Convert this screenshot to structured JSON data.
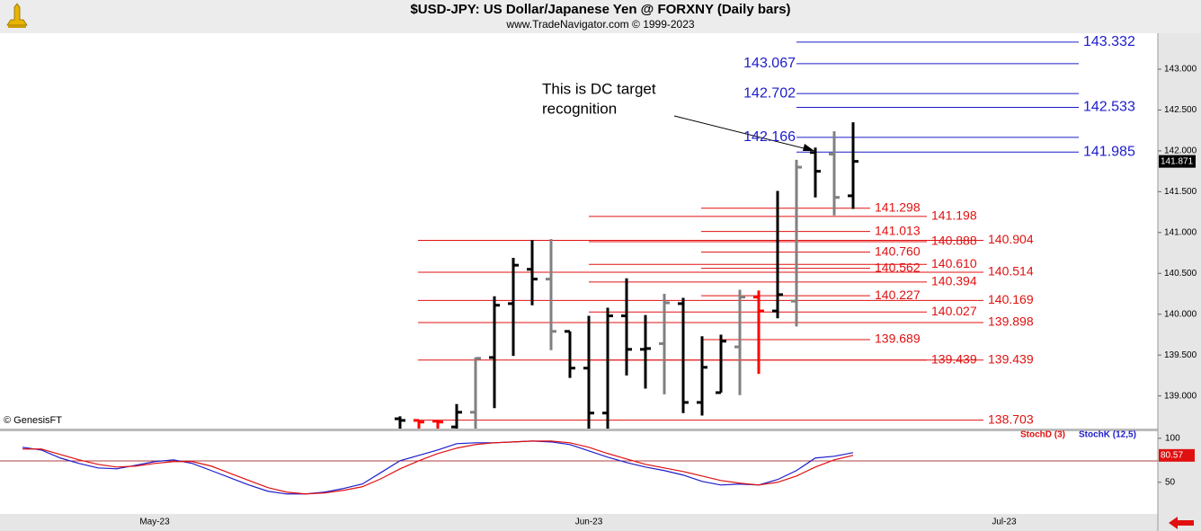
{
  "title": "$USD-JPY:  US Dollar/Japanese Yen @ FORXNY  (Daily bars)",
  "subtitle": "www.TradeNavigator.com © 1999-2023",
  "annotation": [
    "This is DC target",
    "recognition"
  ],
  "credit": "© GenesisFT",
  "chart_data": [
    {
      "type": "ohlc",
      "categories": [
        null,
        null,
        null,
        null,
        null,
        null,
        null,
        "May-23",
        null,
        null,
        null,
        null,
        null,
        null,
        null,
        null,
        null,
        null,
        null,
        null,
        null,
        null,
        null,
        null,
        null,
        null,
        null,
        null,
        null,
        null,
        "Jun-23",
        null,
        null,
        null,
        null,
        null,
        null,
        null,
        null,
        null,
        null,
        null,
        null,
        null,
        null,
        null,
        null,
        null,
        null,
        null,
        null,
        null,
        "Jul-23",
        null,
        null,
        null,
        null,
        null,
        null,
        null
      ],
      "open": [
        null,
        null,
        null,
        null,
        null,
        null,
        null,
        null,
        null,
        null,
        null,
        null,
        null,
        null,
        null,
        null,
        null,
        null,
        null,
        null,
        138.72,
        138.7,
        138.69,
        138.62,
        138.8,
        139.47,
        140.13,
        140.55,
        140.43,
        139.79,
        139.34,
        138.79,
        139.98,
        139.57,
        139.64,
        140.13,
        138.92,
        139.04,
        139.6,
        140.21,
        140.04,
        140.16,
        141.98,
        141.96,
        141.45,
        null,
        null,
        null,
        null,
        null,
        null,
        null,
        null,
        null,
        null,
        null,
        null,
        null,
        null,
        null
      ],
      "high": [
        null,
        null,
        null,
        null,
        null,
        null,
        null,
        null,
        null,
        null,
        null,
        null,
        null,
        null,
        null,
        null,
        null,
        null,
        null,
        null,
        138.75,
        138.7,
        138.7,
        138.9,
        139.47,
        140.22,
        140.69,
        140.91,
        140.92,
        139.79,
        139.98,
        140.08,
        140.44,
        139.99,
        140.25,
        140.2,
        139.73,
        139.75,
        140.3,
        140.29,
        141.51,
        141.89,
        142.04,
        142.24,
        142.35,
        null,
        null,
        null,
        null,
        null,
        null,
        null,
        null,
        null,
        null,
        null,
        null,
        null,
        null,
        null
      ],
      "low": [
        null,
        null,
        null,
        null,
        null,
        null,
        null,
        null,
        null,
        null,
        null,
        null,
        null,
        null,
        null,
        null,
        null,
        null,
        null,
        null,
        138.6,
        138.6,
        138.6,
        138.6,
        138.6,
        138.85,
        139.49,
        140.11,
        139.56,
        139.22,
        138.6,
        138.6,
        139.25,
        139.09,
        139.02,
        138.79,
        138.76,
        139.04,
        139.01,
        139.27,
        139.95,
        139.85,
        141.43,
        141.21,
        141.29,
        null,
        null,
        null,
        null,
        null,
        null,
        null,
        null,
        null,
        null,
        null,
        null,
        null,
        null,
        null
      ],
      "close": [
        null,
        null,
        null,
        null,
        null,
        null,
        null,
        null,
        null,
        null,
        null,
        null,
        null,
        null,
        null,
        null,
        null,
        null,
        null,
        null,
        138.7,
        138.68,
        138.68,
        138.8,
        139.46,
        140.11,
        140.6,
        140.43,
        139.79,
        139.34,
        138.79,
        139.98,
        139.57,
        139.58,
        140.14,
        138.92,
        139.35,
        139.67,
        140.21,
        140.04,
        140.24,
        141.8,
        141.75,
        141.43,
        141.871,
        null,
        null,
        null,
        null,
        null,
        null,
        null,
        null,
        null,
        null,
        null,
        null,
        null,
        null,
        null
      ],
      "bar_colors": [
        null,
        null,
        null,
        null,
        null,
        null,
        null,
        null,
        null,
        null,
        null,
        null,
        null,
        null,
        null,
        null,
        null,
        null,
        null,
        null,
        "#000000",
        "#ff0000",
        "#ff0000",
        "#000000",
        "#808080",
        "#000000",
        "#000000",
        "#000000",
        "#808080",
        "#000000",
        "#000000",
        "#000000",
        "#000000",
        "#000000",
        "#808080",
        "#000000",
        "#000000",
        "#000000",
        "#808080",
        "#ff0000",
        "#000000",
        "#808080",
        "#000000",
        "#808080",
        "#000000",
        null,
        null,
        null,
        null,
        null,
        null,
        null,
        null,
        null,
        null,
        null,
        null,
        null,
        null,
        null
      ],
      "ylim": [
        138.6,
        143.44
      ],
      "yticks": [
        {
          "value": 139,
          "label": "139.000"
        },
        {
          "value": 139.5,
          "label": "139.500"
        },
        {
          "value": 140,
          "label": "140.000"
        },
        {
          "value": 140.5,
          "label": "140.500"
        },
        {
          "value": 141,
          "label": "141.000"
        },
        {
          "value": 141.5,
          "label": "141.500"
        },
        {
          "value": 142,
          "label": "142.000"
        },
        {
          "value": 142.5,
          "label": "142.500"
        },
        {
          "value": 143,
          "label": "143.000"
        }
      ],
      "level_sets": [
        {
          "color": "#1c1ccc",
          "values": [
            143.332,
            142.533,
            141.985
          ],
          "value_labels": [
            "143.332",
            "142.533",
            "141.985"
          ]
        },
        {
          "color": "#1c1ccc",
          "values": [
            143.067,
            142.702,
            142.166
          ],
          "value_labels": [
            "143.067",
            "142.702",
            "142.166"
          ]
        },
        {
          "color": "#e01010",
          "values": [
            141.298,
            141.013,
            140.76,
            140.562,
            140.227,
            139.689
          ],
          "value_labels": [
            "141.298",
            "141.013",
            "140.760",
            "140.562",
            "140.227",
            "139.689"
          ]
        },
        {
          "color": "#e01010",
          "values": [
            141.198,
            140.888,
            140.61,
            140.394,
            140.027,
            139.439
          ],
          "value_labels": [
            "141.198",
            "140.888",
            "140.610",
            "140.394",
            "140.027",
            "139.439"
          ]
        },
        {
          "color": "#e01010",
          "values": [
            140.904,
            140.514,
            140.169,
            139.898,
            139.439,
            138.703
          ],
          "value_labels": [
            "140.904",
            "140.514",
            "140.169",
            "139.898",
            "139.439",
            "138.703"
          ]
        }
      ]
    },
    {
      "type": "line",
      "ylim": [
        14,
        108
      ],
      "yticks": [
        50,
        100
      ],
      "series": [
        {
          "name": "StochK (12,5)",
          "color": "#1c1ccc",
          "values": [
            89.8,
            86.7,
            77.6,
            71.4,
            66.3,
            65.3,
            69.4,
            73.5,
            75.5,
            71.4,
            63.3,
            55.1,
            46.9,
            39.8,
            36.7,
            36.7,
            38.8,
            42.9,
            48.0,
            61.2,
            74.5,
            80.6,
            86.7,
            93.9,
            94.9,
            94.9,
            95.9,
            96.9,
            95.9,
            92.9,
            85.7,
            78.6,
            72.4,
            67.3,
            63.3,
            58.2,
            51.0,
            46.9,
            48.0,
            46.9,
            53.1,
            63.3,
            77.6,
            79.6,
            83.7,
            null,
            null,
            null,
            null,
            null,
            null,
            null,
            null,
            null,
            null,
            null,
            null,
            null,
            null,
            null
          ]
        },
        {
          "name": "StochD (3)",
          "color": "#e01010",
          "values": [
            87.8,
            87.8,
            81.6,
            75.5,
            70.4,
            67.3,
            68.4,
            71.4,
            73.5,
            73.5,
            68.4,
            60.2,
            52.0,
            43.9,
            38.8,
            36.7,
            37.8,
            40.8,
            44.9,
            54.1,
            65.3,
            74.5,
            82.7,
            88.8,
            92.9,
            94.9,
            95.9,
            96.9,
            96.9,
            94.9,
            89.8,
            82.7,
            76.5,
            70.4,
            66.3,
            62.2,
            57.1,
            52.0,
            49.0,
            46.9,
            50.0,
            57.1,
            67.3,
            75.5,
            80.57,
            null,
            null,
            null,
            null,
            null,
            null,
            null,
            null,
            null,
            null,
            null,
            null,
            null,
            null,
            null
          ]
        }
      ]
    }
  ]
}
